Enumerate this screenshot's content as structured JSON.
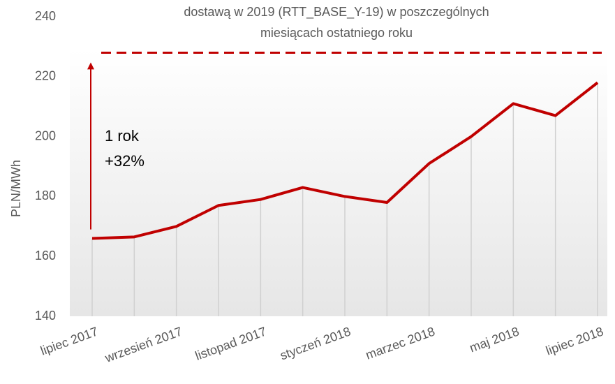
{
  "chart_data": {
    "type": "line",
    "title_lines": [
      "dostawą w 2019 (RTT_BASE_Y-19) w poszczególnych",
      "miesiącach ostatniego roku"
    ],
    "y_label": "PLN/MWh",
    "categories": [
      "lipiec 2017",
      null,
      "wrzesień 2017",
      null,
      "listopad 2017",
      null,
      "styczeń 2018",
      null,
      "marzec 2018",
      null,
      "maj 2018",
      null,
      "lipiec 2018"
    ],
    "series": [
      {
        "name": "RTT_BASE_Y-19",
        "color": "#c00000",
        "values": [
          166,
          166.5,
          170,
          177,
          179,
          183,
          180,
          178,
          191,
          200,
          211,
          207,
          218
        ]
      }
    ],
    "ylim": [
      140,
      240
    ],
    "yticks": [
      140,
      160,
      180,
      200,
      220,
      240
    ],
    "reference_line": {
      "value": 228,
      "color": "#c00000"
    },
    "annotation": {
      "lines": [
        "1 rok",
        "+32%"
      ],
      "arrow_from": 169,
      "arrow_to": 225
    },
    "drop_lines": true
  }
}
